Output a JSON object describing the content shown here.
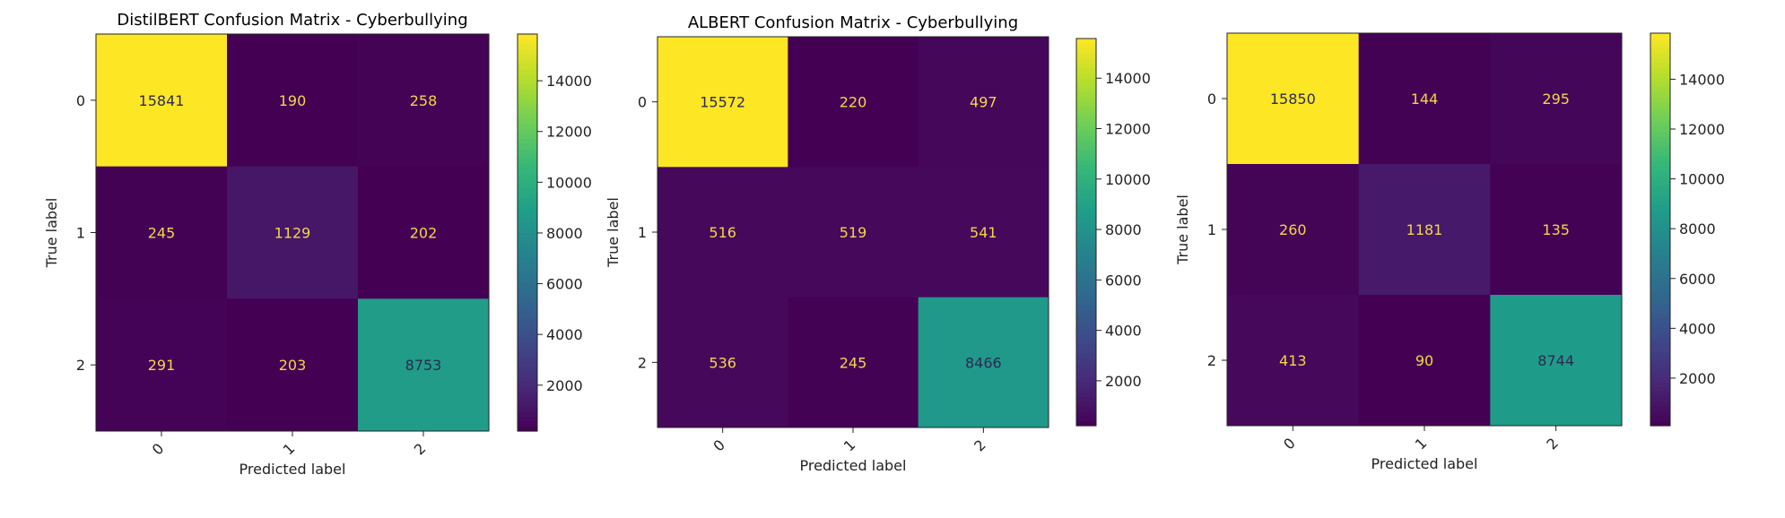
{
  "chart_data": [
    {
      "type": "heatmap",
      "title": "DistilBERT Confusion Matrix - Cyberbullying",
      "xlabel": "Predicted label",
      "ylabel": "True label",
      "x_ticks": [
        "0",
        "1",
        "2"
      ],
      "y_ticks": [
        "0",
        "1",
        "2"
      ],
      "matrix": [
        [
          15841,
          190,
          258
        ],
        [
          245,
          1129,
          202
        ],
        [
          291,
          203,
          8753
        ]
      ],
      "colorbar": {
        "min": 190,
        "max": 15841,
        "ticks": [
          2000,
          4000,
          6000,
          8000,
          10000,
          12000,
          14000
        ]
      }
    },
    {
      "type": "heatmap",
      "title": "ALBERT Confusion Matrix - Cyberbullying",
      "xlabel": "Predicted label",
      "ylabel": "True label",
      "x_ticks": [
        "0",
        "1",
        "2"
      ],
      "y_ticks": [
        "0",
        "1",
        "2"
      ],
      "matrix": [
        [
          15572,
          220,
          497
        ],
        [
          516,
          519,
          541
        ],
        [
          536,
          245,
          8466
        ]
      ],
      "colorbar": {
        "min": 220,
        "max": 15572,
        "ticks": [
          2000,
          4000,
          6000,
          8000,
          10000,
          12000,
          14000
        ]
      }
    },
    {
      "type": "heatmap",
      "title": "",
      "xlabel": "Predicted label",
      "ylabel": "True label",
      "x_ticks": [
        "0",
        "1",
        "2"
      ],
      "y_ticks": [
        "0",
        "1",
        "2"
      ],
      "matrix": [
        [
          15850,
          144,
          295
        ],
        [
          260,
          1181,
          135
        ],
        [
          413,
          90,
          8744
        ]
      ],
      "colorbar": {
        "min": 90,
        "max": 15850,
        "ticks": [
          2000,
          4000,
          6000,
          8000,
          10000,
          12000,
          14000
        ]
      }
    }
  ],
  "colormap": {
    "name": "viridis",
    "stops": [
      "#440154",
      "#482878",
      "#3e4989",
      "#31688e",
      "#26828e",
      "#1f9e89",
      "#35b779",
      "#6ece58",
      "#b5de2b",
      "#fde725"
    ]
  }
}
